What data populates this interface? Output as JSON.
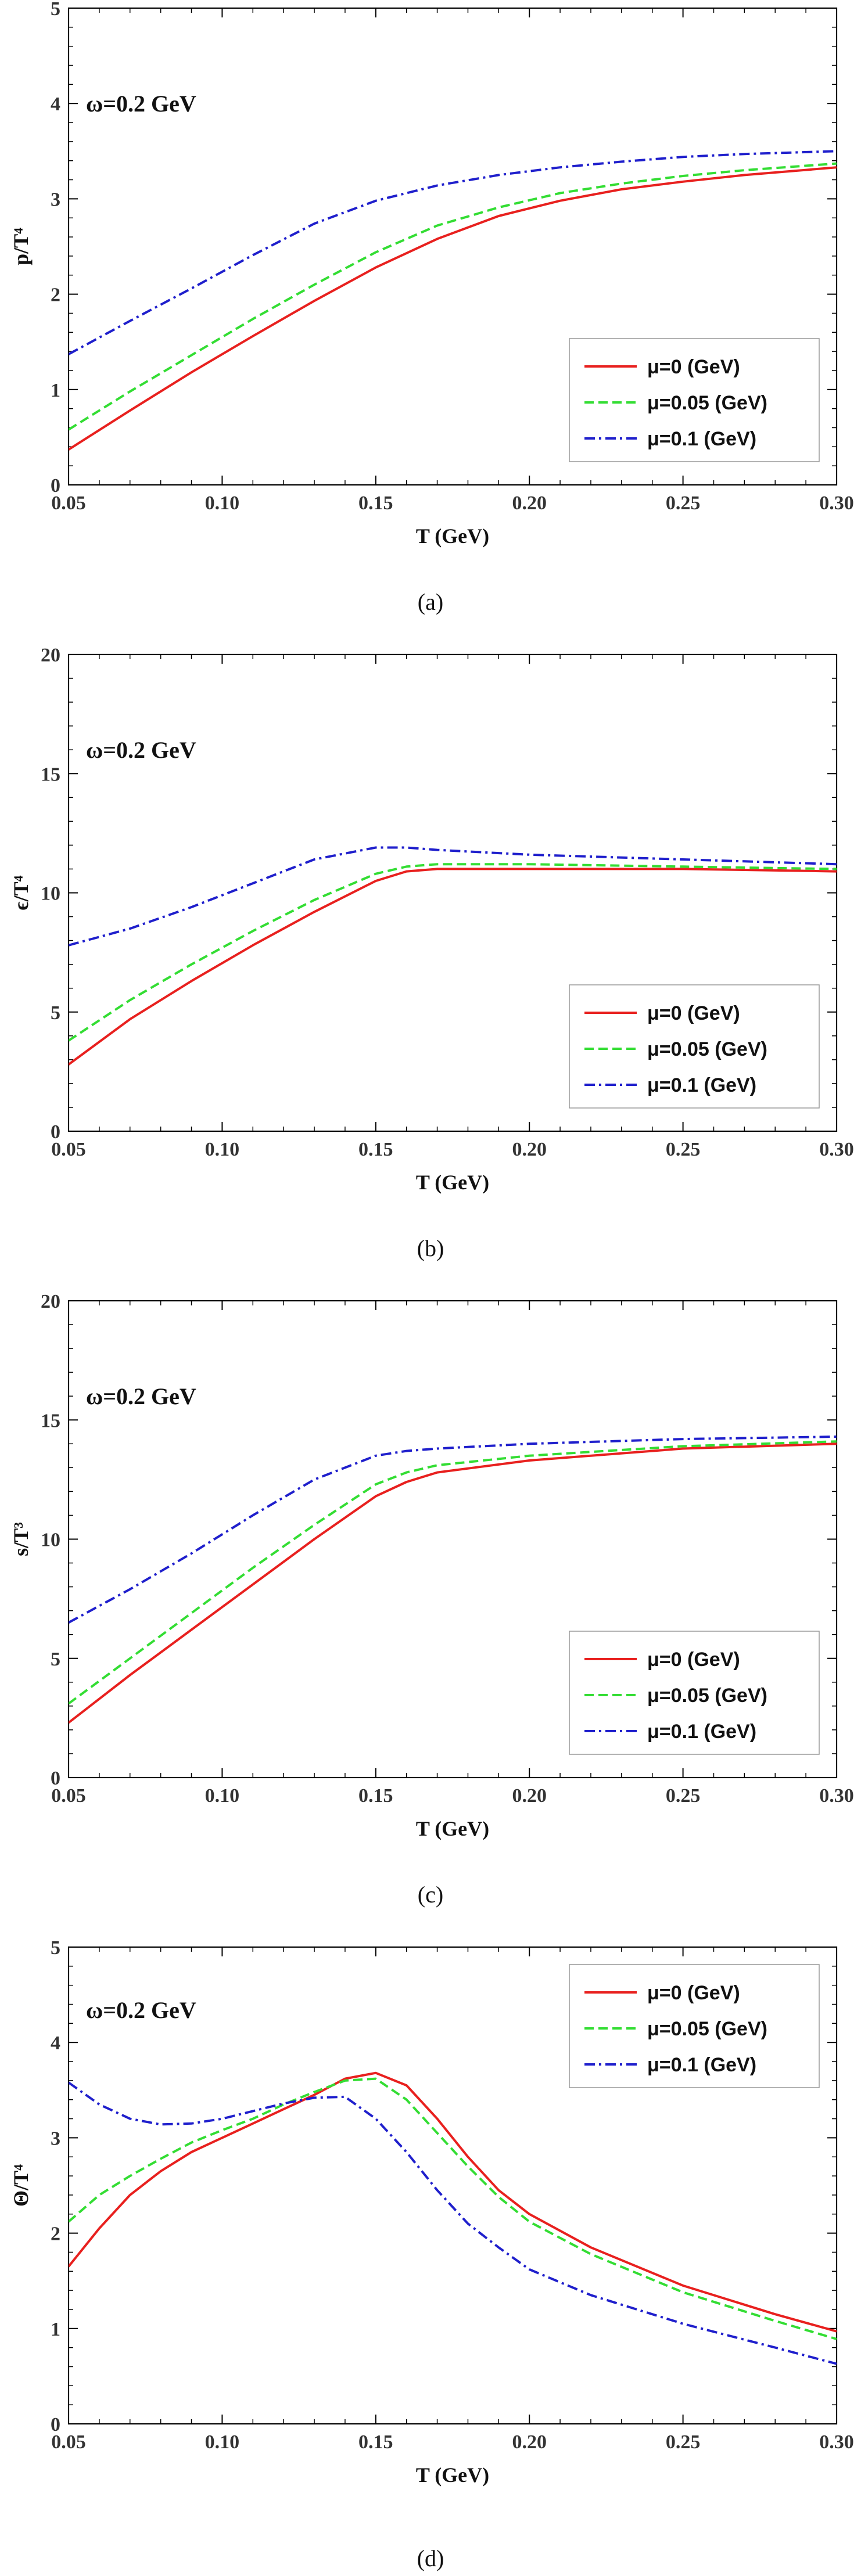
{
  "chart_data": [
    {
      "type": "line",
      "caption": "(a)",
      "annotation": "ω=0.2 GeV",
      "xlabel": "T (GeV)",
      "ylabel": "p/T⁴",
      "xlim": [
        0.05,
        0.3
      ],
      "ylim": [
        0,
        5
      ],
      "xticks": [
        0.05,
        0.1,
        0.15,
        0.2,
        0.25,
        0.3
      ],
      "yticks": [
        0,
        1,
        2,
        3,
        4,
        5
      ],
      "legend_position": "bottom-right",
      "series": [
        {
          "name": "μ=0 (GeV)",
          "color": "#e8201e",
          "dash": "solid",
          "x": [
            0.05,
            0.07,
            0.09,
            0.11,
            0.13,
            0.15,
            0.17,
            0.19,
            0.21,
            0.23,
            0.25,
            0.27,
            0.3
          ],
          "y": [
            0.37,
            0.78,
            1.18,
            1.56,
            1.93,
            2.28,
            2.58,
            2.82,
            2.98,
            3.1,
            3.18,
            3.25,
            3.33
          ]
        },
        {
          "name": "μ=0.05 (GeV)",
          "color": "#33dd33",
          "dash": "dashed",
          "x": [
            0.05,
            0.07,
            0.09,
            0.11,
            0.13,
            0.15,
            0.17,
            0.19,
            0.21,
            0.23,
            0.25,
            0.27,
            0.3
          ],
          "y": [
            0.58,
            0.98,
            1.36,
            1.74,
            2.1,
            2.44,
            2.72,
            2.91,
            3.06,
            3.16,
            3.24,
            3.3,
            3.37
          ]
        },
        {
          "name": "μ=0.1 (GeV)",
          "color": "#1f1fcc",
          "dash": "dashdot",
          "x": [
            0.05,
            0.07,
            0.09,
            0.11,
            0.13,
            0.15,
            0.17,
            0.19,
            0.21,
            0.23,
            0.25,
            0.27,
            0.3
          ],
          "y": [
            1.37,
            1.72,
            2.06,
            2.41,
            2.74,
            2.98,
            3.14,
            3.25,
            3.33,
            3.39,
            3.44,
            3.47,
            3.5
          ]
        }
      ]
    },
    {
      "type": "line",
      "caption": "(b)",
      "annotation": "ω=0.2 GeV",
      "xlabel": "T (GeV)",
      "ylabel": "ϵ/T⁴",
      "xlim": [
        0.05,
        0.3
      ],
      "ylim": [
        0,
        20
      ],
      "xticks": [
        0.05,
        0.1,
        0.15,
        0.2,
        0.25,
        0.3
      ],
      "yticks": [
        0,
        5,
        10,
        15,
        20
      ],
      "legend_position": "bottom-right",
      "series": [
        {
          "name": "μ=0 (GeV)",
          "color": "#e8201e",
          "dash": "solid",
          "x": [
            0.05,
            0.07,
            0.09,
            0.11,
            0.13,
            0.15,
            0.16,
            0.17,
            0.2,
            0.25,
            0.3
          ],
          "y": [
            2.8,
            4.7,
            6.3,
            7.8,
            9.2,
            10.5,
            10.9,
            11.0,
            11.0,
            11.0,
            10.9
          ]
        },
        {
          "name": "μ=0.05 (GeV)",
          "color": "#33dd33",
          "dash": "dashed",
          "x": [
            0.05,
            0.07,
            0.09,
            0.11,
            0.13,
            0.15,
            0.16,
            0.17,
            0.2,
            0.25,
            0.3
          ],
          "y": [
            3.8,
            5.5,
            7.0,
            8.4,
            9.7,
            10.8,
            11.1,
            11.2,
            11.2,
            11.1,
            11.0
          ]
        },
        {
          "name": "μ=0.1 (GeV)",
          "color": "#1f1fcc",
          "dash": "dashdot",
          "x": [
            0.05,
            0.07,
            0.09,
            0.11,
            0.13,
            0.15,
            0.16,
            0.17,
            0.2,
            0.25,
            0.3
          ],
          "y": [
            7.8,
            8.5,
            9.4,
            10.4,
            11.4,
            11.9,
            11.9,
            11.8,
            11.6,
            11.4,
            11.2
          ]
        }
      ]
    },
    {
      "type": "line",
      "caption": "(c)",
      "annotation": "ω=0.2 GeV",
      "xlabel": "T (GeV)",
      "ylabel": "s/T³",
      "xlim": [
        0.05,
        0.3
      ],
      "ylim": [
        0,
        20
      ],
      "xticks": [
        0.05,
        0.1,
        0.15,
        0.2,
        0.25,
        0.3
      ],
      "yticks": [
        0,
        5,
        10,
        15,
        20
      ],
      "legend_position": "bottom-right",
      "series": [
        {
          "name": "μ=0 (GeV)",
          "color": "#e8201e",
          "dash": "solid",
          "x": [
            0.05,
            0.07,
            0.09,
            0.11,
            0.13,
            0.15,
            0.16,
            0.17,
            0.2,
            0.25,
            0.3
          ],
          "y": [
            2.3,
            4.3,
            6.2,
            8.1,
            10.0,
            11.8,
            12.4,
            12.8,
            13.3,
            13.8,
            14.0
          ]
        },
        {
          "name": "μ=0.05 (GeV)",
          "color": "#33dd33",
          "dash": "dashed",
          "x": [
            0.05,
            0.07,
            0.09,
            0.11,
            0.13,
            0.15,
            0.16,
            0.17,
            0.2,
            0.25,
            0.3
          ],
          "y": [
            3.1,
            5.0,
            6.9,
            8.8,
            10.6,
            12.3,
            12.8,
            13.1,
            13.5,
            13.9,
            14.1
          ]
        },
        {
          "name": "μ=0.1 (GeV)",
          "color": "#1f1fcc",
          "dash": "dashdot",
          "x": [
            0.05,
            0.07,
            0.09,
            0.11,
            0.13,
            0.15,
            0.16,
            0.17,
            0.2,
            0.25,
            0.3
          ],
          "y": [
            6.5,
            7.9,
            9.4,
            11.0,
            12.5,
            13.5,
            13.7,
            13.8,
            14.0,
            14.2,
            14.3
          ]
        }
      ]
    },
    {
      "type": "line",
      "caption": "(d)",
      "annotation": "ω=0.2 GeV",
      "xlabel": "T (GeV)",
      "ylabel": "Θ/T⁴",
      "xlim": [
        0.05,
        0.3
      ],
      "ylim": [
        0,
        5
      ],
      "xticks": [
        0.05,
        0.1,
        0.15,
        0.2,
        0.25,
        0.3
      ],
      "yticks": [
        0,
        1,
        2,
        3,
        4,
        5
      ],
      "legend_position": "top-right",
      "series": [
        {
          "name": "μ=0 (GeV)",
          "color": "#e8201e",
          "dash": "solid",
          "x": [
            0.05,
            0.06,
            0.07,
            0.08,
            0.09,
            0.1,
            0.11,
            0.12,
            0.13,
            0.14,
            0.15,
            0.16,
            0.17,
            0.18,
            0.19,
            0.2,
            0.22,
            0.25,
            0.28,
            0.3
          ],
          "y": [
            1.65,
            2.05,
            2.4,
            2.65,
            2.85,
            3.0,
            3.15,
            3.3,
            3.45,
            3.62,
            3.68,
            3.55,
            3.2,
            2.8,
            2.45,
            2.2,
            1.85,
            1.45,
            1.15,
            0.97
          ]
        },
        {
          "name": "μ=0.05 (GeV)",
          "color": "#33dd33",
          "dash": "dashed",
          "x": [
            0.05,
            0.06,
            0.07,
            0.08,
            0.09,
            0.1,
            0.11,
            0.12,
            0.13,
            0.14,
            0.15,
            0.16,
            0.17,
            0.18,
            0.19,
            0.2,
            0.22,
            0.25,
            0.28,
            0.3
          ],
          "y": [
            2.12,
            2.4,
            2.6,
            2.78,
            2.95,
            3.08,
            3.2,
            3.35,
            3.48,
            3.6,
            3.62,
            3.4,
            3.05,
            2.7,
            2.38,
            2.12,
            1.78,
            1.38,
            1.08,
            0.89
          ]
        },
        {
          "name": "μ=0.1 (GeV)",
          "color": "#1f1fcc",
          "dash": "dashdot",
          "x": [
            0.05,
            0.06,
            0.07,
            0.08,
            0.09,
            0.1,
            0.11,
            0.12,
            0.13,
            0.14,
            0.15,
            0.16,
            0.17,
            0.18,
            0.19,
            0.2,
            0.22,
            0.25,
            0.28,
            0.3
          ],
          "y": [
            3.58,
            3.35,
            3.2,
            3.14,
            3.15,
            3.2,
            3.28,
            3.36,
            3.42,
            3.43,
            3.2,
            2.85,
            2.45,
            2.1,
            1.85,
            1.62,
            1.35,
            1.05,
            0.8,
            0.63
          ]
        }
      ]
    }
  ]
}
